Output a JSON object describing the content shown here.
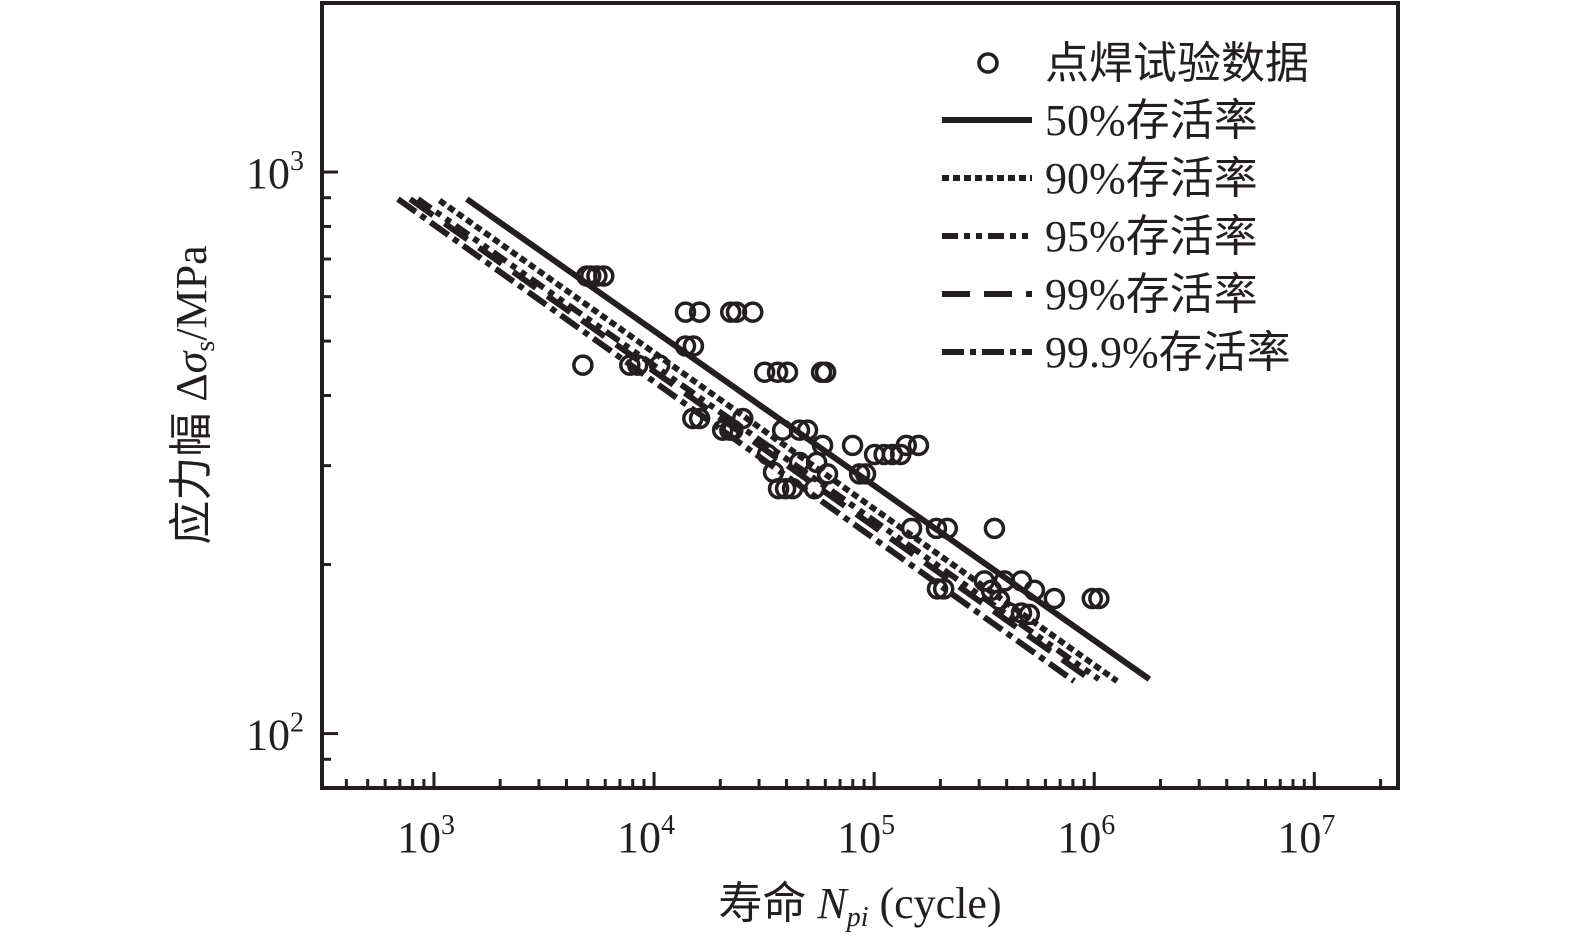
{
  "chart_data": {
    "type": "scatter",
    "title": "",
    "xscale": "log",
    "yscale": "log",
    "xlim": [
      310,
      24000000
    ],
    "ylim": [
      80,
      2000
    ],
    "grid": false,
    "legend_placement": "top-right",
    "xlabel": {
      "prefix": "寿命 ",
      "var": "N",
      "sub": "pi",
      "suffix": " (cycle)"
    },
    "ylabel": {
      "prefix": "应力幅 Δ",
      "var": "σ",
      "sub": "s",
      "suffix": "/MPa"
    },
    "xticks": [
      {
        "value": 1000,
        "base": "10",
        "exp": "3"
      },
      {
        "value": 10000,
        "base": "10",
        "exp": "4"
      },
      {
        "value": 100000,
        "base": "10",
        "exp": "5"
      },
      {
        "value": 1000000,
        "base": "10",
        "exp": "6"
      },
      {
        "value": 10000000,
        "base": "10",
        "exp": "7"
      }
    ],
    "yticks": [
      {
        "value": 100,
        "base": "10",
        "exp": "2"
      },
      {
        "value": 1000,
        "base": "10",
        "exp": "3"
      }
    ],
    "scatter": {
      "name": "点焊试验数据",
      "points": [
        [
          4750,
          453
        ],
        [
          4950,
          653
        ],
        [
          5160,
          653
        ],
        [
          5500,
          653
        ],
        [
          5910,
          653
        ],
        [
          7760,
          453
        ],
        [
          8430,
          453
        ],
        [
          10600,
          453
        ],
        [
          13900,
          563
        ],
        [
          16100,
          563
        ],
        [
          13900,
          490
        ],
        [
          15100,
          490
        ],
        [
          22300,
          563
        ],
        [
          23700,
          563
        ],
        [
          28100,
          563
        ],
        [
          15000,
          364
        ],
        [
          16100,
          364
        ],
        [
          22800,
          347
        ],
        [
          25300,
          364
        ],
        [
          31800,
          440
        ],
        [
          36400,
          440
        ],
        [
          40400,
          440
        ],
        [
          57700,
          440
        ],
        [
          60200,
          440
        ],
        [
          34900,
          292
        ],
        [
          36800,
          273
        ],
        [
          39600,
          273
        ],
        [
          42600,
          273
        ],
        [
          38400,
          347
        ],
        [
          45800,
          347
        ],
        [
          49800,
          347
        ],
        [
          53600,
          273
        ],
        [
          58300,
          326
        ],
        [
          61400,
          290
        ],
        [
          79800,
          326
        ],
        [
          85900,
          290
        ],
        [
          91400,
          290
        ],
        [
          100500,
          314
        ],
        [
          111000,
          314
        ],
        [
          121000,
          314
        ],
        [
          132000,
          314
        ],
        [
          140000,
          326
        ],
        [
          159000,
          326
        ],
        [
          148000,
          232
        ],
        [
          192000,
          232
        ],
        [
          215000,
          232
        ],
        [
          352000,
          232
        ],
        [
          194000,
          181
        ],
        [
          207000,
          181
        ],
        [
          391000,
          187
        ],
        [
          467000,
          187
        ],
        [
          535000,
          180
        ],
        [
          659000,
          174
        ],
        [
          980000,
          174
        ],
        [
          1050000,
          174
        ],
        [
          371000,
          173
        ],
        [
          412000,
          164
        ],
        [
          467000,
          164
        ],
        [
          507000,
          163
        ],
        [
          341000,
          180
        ],
        [
          317000,
          187
        ],
        [
          20500,
          347
        ],
        [
          22100,
          347
        ],
        [
          32800,
          314
        ],
        [
          45800,
          304
        ],
        [
          54800,
          304
        ]
      ]
    },
    "series": [
      {
        "name": "50%存活率",
        "style": "solid",
        "x": [
          1410,
          1780000
        ],
        "y": [
          895,
          125
        ]
      },
      {
        "name": "90%存活率",
        "style": "dotted",
        "x": [
          1060,
          1270000
        ],
        "y": [
          890,
          124
        ]
      },
      {
        "name": "95%存活率",
        "style": "dash-dot-dot",
        "x": [
          846,
          1050000
        ],
        "y": [
          895,
          125
        ]
      },
      {
        "name": "99%存活率",
        "style": "dashed",
        "x": [
          780,
          930000
        ],
        "y": [
          895,
          126
        ]
      },
      {
        "name": "99.9%存活率",
        "style": "dash-dot",
        "x": [
          686,
          810000
        ],
        "y": [
          895,
          124
        ]
      }
    ],
    "colors": {
      "ink": "#231f20"
    }
  }
}
